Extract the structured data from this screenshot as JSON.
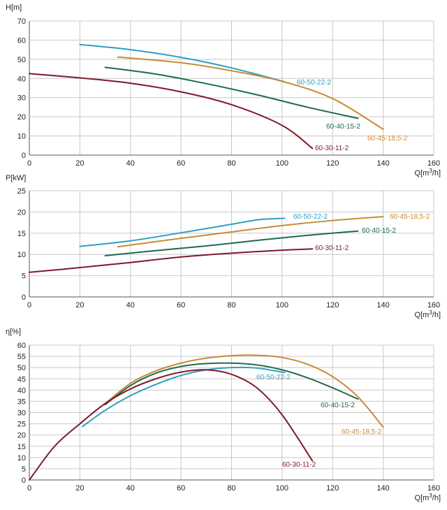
{
  "colors": {
    "60-50-22-2": "#2f9fc4",
    "60-45-18,5-2": "#c98a34",
    "60-40-15-2": "#1f6a4e",
    "60-30-11-2": "#7e1a2a"
  },
  "chart_data": [
    {
      "type": "line",
      "ylabel": "H[m]",
      "xlabel_main": "Q[m",
      "xlabel_sup": "3",
      "xlabel_end": "/h]",
      "xlim": [
        0,
        160
      ],
      "ylim": [
        0,
        70
      ],
      "xticks": [
        "0",
        "20",
        "40",
        "60",
        "80",
        "100",
        "120",
        "140",
        "160"
      ],
      "yticks": [
        "0",
        "10",
        "20",
        "30",
        "40",
        "50",
        "60",
        "70"
      ],
      "series": [
        {
          "name": "60-50-22-2",
          "x": [
            20,
            40,
            60,
            80,
            101
          ],
          "y": [
            57.7,
            55,
            51,
            45.5,
            38.3
          ]
        },
        {
          "name": "60-45-18,5-2",
          "x": [
            35,
            60,
            80,
            100,
            120,
            140
          ],
          "y": [
            51.2,
            48.2,
            44,
            38.5,
            29.5,
            13.5
          ]
        },
        {
          "name": "60-40-15-2",
          "x": [
            30,
            50,
            70,
            90,
            110,
            130
          ],
          "y": [
            45.8,
            42.3,
            37.3,
            31.5,
            25,
            19.2
          ]
        },
        {
          "name": "60-30-11-2",
          "x": [
            0,
            20,
            40,
            60,
            80,
            100,
            112
          ],
          "y": [
            42.5,
            40.3,
            37.5,
            33,
            26.3,
            15.5,
            3.5
          ]
        }
      ]
    },
    {
      "type": "line",
      "ylabel": "P[kW]",
      "xlabel_main": "Q[m",
      "xlabel_sup": "3",
      "xlabel_end": "/h]",
      "xlim": [
        0,
        160
      ],
      "ylim": [
        0,
        25
      ],
      "xticks": [
        "0",
        "20",
        "40",
        "60",
        "80",
        "100",
        "120",
        "140",
        "160"
      ],
      "yticks": [
        "0",
        "5",
        "10",
        "15",
        "20",
        "25"
      ],
      "series": [
        {
          "name": "60-50-22-2",
          "x": [
            20,
            40,
            60,
            80,
            91,
            101
          ],
          "y": [
            11.9,
            13.2,
            15.1,
            17.1,
            18.2,
            18.5
          ]
        },
        {
          "name": "60-45-18,5-2",
          "x": [
            35,
            60,
            80,
            100,
            120,
            140
          ],
          "y": [
            11.8,
            13.8,
            15.3,
            16.8,
            18,
            18.9
          ]
        },
        {
          "name": "60-40-15-2",
          "x": [
            30,
            50,
            70,
            90,
            110,
            130
          ],
          "y": [
            9.7,
            10.9,
            12,
            13.3,
            14.5,
            15.5
          ]
        },
        {
          "name": "60-30-11-2",
          "x": [
            0,
            20,
            40,
            60,
            80,
            100,
            112
          ],
          "y": [
            5.8,
            6.9,
            8.1,
            9.4,
            10.3,
            11,
            11.3
          ]
        }
      ]
    },
    {
      "type": "line",
      "ylabel": "η[%]",
      "xlabel_main": "Q[m",
      "xlabel_sup": "3",
      "xlabel_end": "/h]",
      "xlim": [
        0,
        160
      ],
      "ylim": [
        0,
        60
      ],
      "xticks": [
        "0",
        "20",
        "40",
        "60",
        "80",
        "100",
        "120",
        "140",
        "160"
      ],
      "yticks": [
        "0",
        "5",
        "10",
        "15",
        "20",
        "25",
        "30",
        "35",
        "40",
        "45",
        "50",
        "55",
        "60"
      ],
      "series": [
        {
          "name": "60-50-22-2",
          "x": [
            21,
            30,
            40,
            50,
            60,
            70,
            80,
            90,
            101
          ],
          "y": [
            23.8,
            31,
            37.5,
            42.5,
            46.5,
            49,
            50,
            49.8,
            47.8
          ]
        },
        {
          "name": "60-45-18,5-2",
          "x": [
            30,
            40,
            50,
            60,
            70,
            80,
            90,
            100,
            110,
            120,
            130,
            140
          ],
          "y": [
            34,
            43,
            48.5,
            52,
            54.2,
            55.3,
            55.5,
            54.5,
            51.5,
            46,
            37,
            23.5
          ]
        },
        {
          "name": "60-40-15-2",
          "x": [
            30,
            40,
            50,
            60,
            70,
            80,
            90,
            100,
            110,
            120,
            130
          ],
          "y": [
            33.5,
            42,
            47.5,
            50.5,
            51.8,
            52,
            51.2,
            49,
            45.5,
            41,
            36
          ]
        },
        {
          "name": "60-30-11-2",
          "x": [
            0,
            10,
            20,
            30,
            40,
            50,
            60,
            70,
            80,
            90,
            100,
            112
          ],
          "y": [
            0,
            15,
            25,
            34,
            40.5,
            45,
            48,
            49,
            47,
            41,
            29,
            8.5
          ]
        }
      ]
    }
  ]
}
